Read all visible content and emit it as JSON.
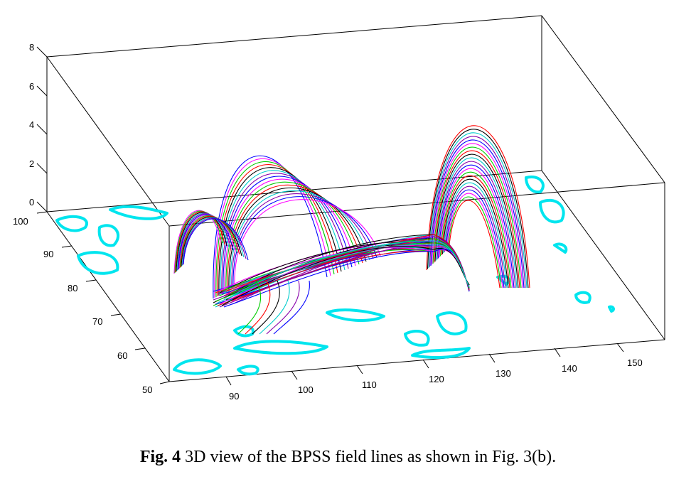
{
  "figure": {
    "caption_label": "Fig. 4",
    "caption_text": "3D view of the BPSS field lines as shown in Fig. 3(b).",
    "z_ticks": [
      "0",
      "2",
      "4",
      "6",
      "8"
    ],
    "y_ticks": [
      "50",
      "60",
      "70",
      "80",
      "90",
      "100"
    ],
    "x_ticks": [
      "90",
      "100",
      "110",
      "120",
      "130",
      "140",
      "150"
    ]
  },
  "colors": {
    "contour": "#00e5ee",
    "field_lines": [
      "#0000ff",
      "#ff00ff",
      "#00cc00",
      "#ff0000",
      "#000000",
      "#00cccc",
      "#8800aa"
    ],
    "box": "#000000"
  },
  "content": {
    "type": "3d-field-line-plot",
    "description_visible": "field lines over cyan contours"
  }
}
